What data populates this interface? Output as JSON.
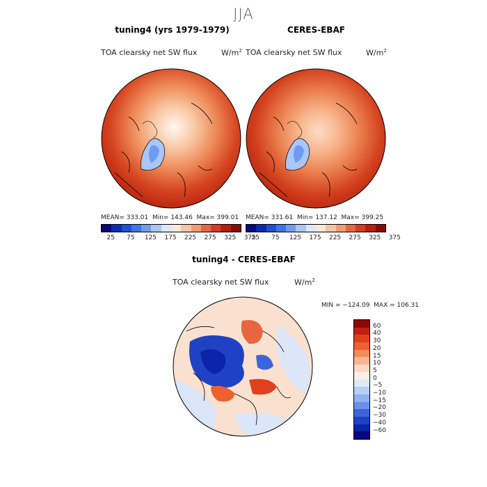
{
  "season": "JJA",
  "panels": [
    {
      "title": "tuning4 (yrs 1979-1979)",
      "variable": "TOA clearsky net SW flux",
      "unit": "W/m",
      "unit_sup": "2",
      "stats": "MEAN= 333.01  Min= 143.46  Max= 399.01",
      "mean": 333.01,
      "min": 143.46,
      "max": 399.01
    },
    {
      "title": "CERES-EBAF",
      "variable": "TOA clearsky net SW flux",
      "unit": "W/m",
      "unit_sup": "2",
      "stats": "MEAN= 331.61  Min= 137.12  Max= 399.25",
      "mean": 331.61,
      "min": 137.12,
      "max": 399.25
    }
  ],
  "colorbar": {
    "colors": [
      "#08087a",
      "#0c2ab4",
      "#1f4fd8",
      "#3f74ea",
      "#6f9bf1",
      "#a8c6f5",
      "#dde7f8",
      "#fbe7d6",
      "#f7c4a4",
      "#f29a72",
      "#e8663f",
      "#d93b1e",
      "#bb1c0f",
      "#8a0a08"
    ],
    "labels": [
      "25",
      "75",
      "125",
      "175",
      "225",
      "275",
      "325",
      "375"
    ]
  },
  "diff": {
    "title": "tuning4 - CERES-EBAF",
    "variable": "TOA clearsky net SW flux",
    "unit": "W/m",
    "unit_sup": "2",
    "stats": "MIN = −124.09  MAX = 106.31",
    "min": -124.09,
    "max": 106.31,
    "colorbar": {
      "colors": [
        "#8a0a08",
        "#c0200f",
        "#e0401e",
        "#f0602e",
        "#f58a5f",
        "#f8b594",
        "#fbd9c5",
        "#fcefe6",
        "#dde9f7",
        "#b6cff3",
        "#8fb1ee",
        "#6a90e8",
        "#3c64dc",
        "#1f42c4",
        "#0b24a8",
        "#07077e"
      ],
      "labels": [
        "60",
        "40",
        "30",
        "20",
        "15",
        "10",
        "5",
        "0",
        "−5",
        "−10",
        "−15",
        "−20",
        "−30",
        "−40",
        "−60"
      ]
    }
  }
}
